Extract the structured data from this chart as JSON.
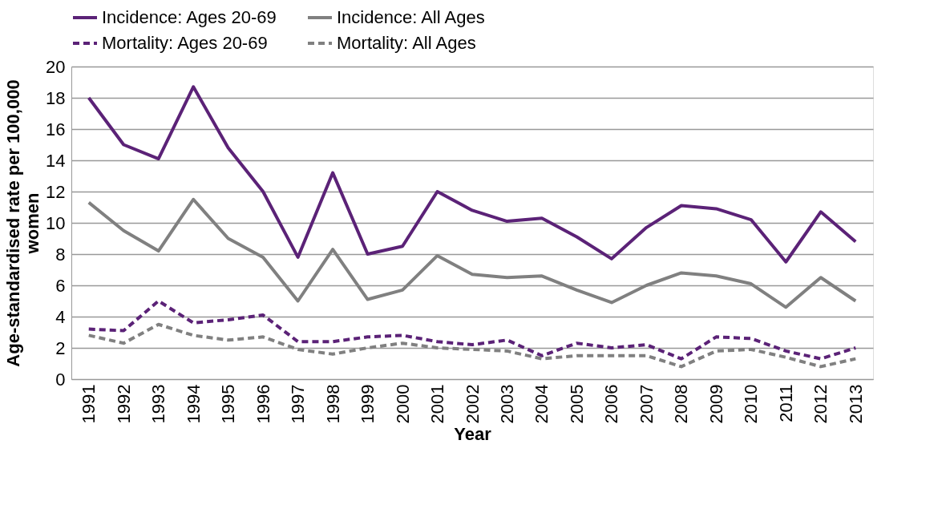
{
  "chart_data": {
    "type": "line",
    "xlabel": "Year",
    "ylabel": "Age-standardised rate per 100,000 women",
    "categories": [
      "1991",
      "1992",
      "1993",
      "1994",
      "1995",
      "1996",
      "1997",
      "1998",
      "1999",
      "2000",
      "2001",
      "2002",
      "2003",
      "2004",
      "2005",
      "2006",
      "2007",
      "2008",
      "2009",
      "2010",
      "2011",
      "2012",
      "2013"
    ],
    "series": [
      {
        "name": "Incidence: Ages 20-69",
        "color": "#5b2277",
        "line_style": "solid",
        "values": [
          18,
          15,
          14.1,
          18.7,
          14.8,
          12,
          7.8,
          13.2,
          8,
          8.5,
          12,
          10.8,
          10.1,
          10.3,
          9.1,
          7.7,
          9.7,
          11.1,
          10.9,
          10.2,
          7.5,
          10.7,
          8.8
        ]
      },
      {
        "name": "Incidence: All Ages",
        "color": "#808080",
        "line_style": "solid",
        "values": [
          11.3,
          9.5,
          8.2,
          11.5,
          9,
          7.8,
          5,
          8.3,
          5.1,
          5.7,
          7.9,
          6.7,
          6.5,
          6.6,
          5.7,
          4.9,
          6,
          6.8,
          6.6,
          6.1,
          4.6,
          6.5,
          5
        ]
      },
      {
        "name": "Mortality: Ages 20-69",
        "color": "#5b2277",
        "line_style": "dashed",
        "values": [
          3.2,
          3.1,
          5,
          3.6,
          3.8,
          4.1,
          2.4,
          2.4,
          2.7,
          2.8,
          2.4,
          2.2,
          2.5,
          1.5,
          2.3,
          2,
          2.2,
          1.3,
          2.7,
          2.6,
          1.8,
          1.3,
          2
        ]
      },
      {
        "name": "Mortality: All Ages",
        "color": "#808080",
        "line_style": "dashed",
        "values": [
          2.8,
          2.3,
          3.5,
          2.8,
          2.5,
          2.7,
          1.9,
          1.6,
          2,
          2.3,
          2,
          1.9,
          1.8,
          1.3,
          1.5,
          1.5,
          1.5,
          0.8,
          1.8,
          1.9,
          1.4,
          0.8,
          1.3
        ]
      }
    ],
    "ylim": [
      0,
      20
    ],
    "yticks": [
      0,
      2,
      4,
      6,
      8,
      10,
      12,
      14,
      16,
      18,
      20
    ],
    "grid": "y",
    "legend": "top",
    "marker": "none"
  }
}
